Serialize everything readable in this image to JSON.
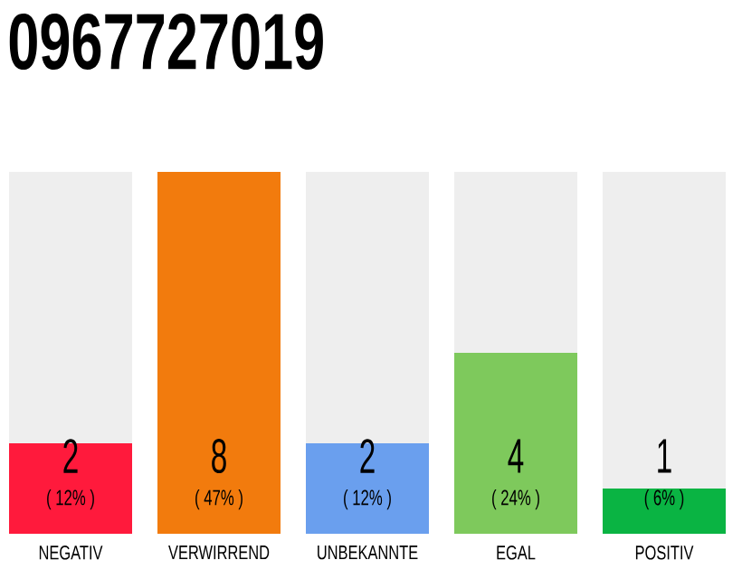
{
  "chart_data": {
    "type": "bar",
    "title": "0967727019",
    "stacked": true,
    "categories": [
      "NEGATIV",
      "VERWIRREND",
      "UNBEKANNTE",
      "EGAL",
      "POSITIV"
    ],
    "series": [
      {
        "colors": [
          "#ff1a3c",
          "#f27b0d",
          "#6a9fee",
          "#7ec95c",
          "#0ab443"
        ],
        "values": [
          2,
          8,
          2,
          4,
          1
        ],
        "value_labels": [
          "2",
          "8",
          "2",
          "4",
          "1"
        ]
      },
      {
        "color": "#eeeeee",
        "values": [
          6,
          0,
          6,
          4,
          7
        ]
      }
    ],
    "annotations": [
      "( 12% )",
      "( 47% )",
      "( 12% )",
      "( 24% )",
      "( 6% )"
    ]
  }
}
